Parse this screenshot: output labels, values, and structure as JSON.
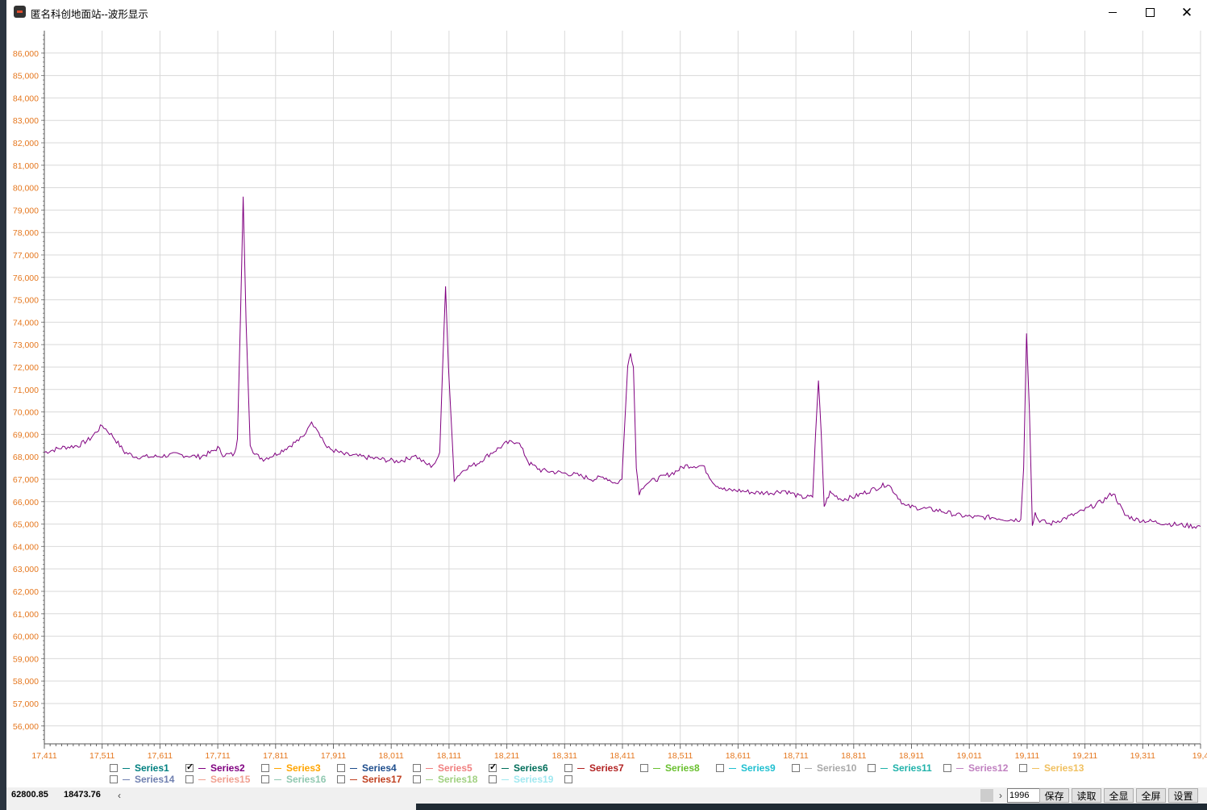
{
  "window": {
    "title": "匿名科创地面站--波形显示",
    "min_label": "—",
    "close_label": "✕"
  },
  "colors": {
    "tick_label": "#e5771e",
    "waveform": "#800080",
    "grid": "#d9d9d9"
  },
  "chart_data": {
    "type": "line",
    "title": "",
    "xlabel": "",
    "ylabel": "",
    "xlim": [
      17411,
      19411
    ],
    "ylim": [
      55200,
      87000
    ],
    "x_ticks": [
      "17,411",
      "17,511",
      "17,611",
      "17,711",
      "17,811",
      "17,911",
      "18,011",
      "18,111",
      "18,211",
      "18,311",
      "18,411",
      "18,511",
      "18,611",
      "18,711",
      "18,811",
      "18,911",
      "19,011",
      "19,111",
      "19,211",
      "19,311",
      "19,4"
    ],
    "y_ticks": [
      "86,000",
      "85,000",
      "84,000",
      "83,000",
      "82,000",
      "81,000",
      "80,000",
      "79,000",
      "78,000",
      "77,000",
      "76,000",
      "75,000",
      "74,000",
      "73,000",
      "72,000",
      "71,000",
      "70,000",
      "69,000",
      "68,000",
      "67,000",
      "66,000",
      "65,000",
      "64,000",
      "63,000",
      "62,000",
      "61,000",
      "60,000",
      "59,000",
      "58,000",
      "57,000",
      "56,000"
    ],
    "grid": true,
    "series": [
      {
        "name": "Series2",
        "color": "#800080",
        "x": [
          17411,
          17440,
          17470,
          17490,
          17511,
          17530,
          17550,
          17570,
          17600,
          17640,
          17680,
          17700,
          17711,
          17720,
          17740,
          17745,
          17750,
          17755,
          17760,
          17767,
          17775,
          17790,
          17810,
          17830,
          17860,
          17870,
          17880,
          17900,
          17930,
          17960,
          17990,
          18020,
          18040,
          18050,
          18060,
          18070,
          18080,
          18090,
          18095,
          18100,
          18105,
          18110,
          18120,
          18140,
          18160,
          18180,
          18210,
          18230,
          18250,
          18270,
          18300,
          18330,
          18360,
          18380,
          18400,
          18410,
          18420,
          18425,
          18430,
          18435,
          18440,
          18450,
          18460,
          18480,
          18500,
          18520,
          18550,
          18570,
          18590,
          18610,
          18640,
          18670,
          18690,
          18720,
          18740,
          18745,
          18750,
          18755,
          18760,
          18765,
          18770,
          18790,
          18810,
          18830,
          18850,
          18870,
          18900,
          18930,
          18960,
          18990,
          19020,
          19050,
          19080,
          19100,
          19105,
          19110,
          19115,
          19120,
          19125,
          19130,
          19150,
          19170,
          19200,
          19240,
          19260,
          19280,
          19300,
          19330,
          19360,
          19400,
          19411
        ],
        "values": [
          68200,
          68400,
          68500,
          68800,
          69400,
          68900,
          68200,
          68000,
          68000,
          68100,
          68000,
          68200,
          68400,
          68100,
          68100,
          68800,
          74000,
          79600,
          74000,
          68600,
          68100,
          67900,
          68100,
          68400,
          68900,
          69500,
          69400,
          68400,
          68100,
          68000,
          67900,
          67800,
          67900,
          68100,
          67900,
          67700,
          67600,
          67800,
          68200,
          72000,
          75600,
          72000,
          67000,
          67500,
          67700,
          68100,
          68600,
          68700,
          67700,
          67400,
          67300,
          67200,
          67000,
          67100,
          66800,
          67000,
          72000,
          72700,
          72000,
          67500,
          66400,
          66800,
          66900,
          67100,
          67300,
          67600,
          67600,
          66800,
          66500,
          66500,
          66400,
          66400,
          66500,
          66200,
          66200,
          69000,
          71400,
          69000,
          65800,
          66100,
          66400,
          66100,
          66200,
          66400,
          66600,
          66800,
          65800,
          65700,
          65600,
          65400,
          65300,
          65300,
          65200,
          65200,
          67500,
          73500,
          70000,
          65000,
          65500,
          65200,
          65000,
          65200,
          65500,
          66000,
          66400,
          65400,
          65200,
          65100,
          65000,
          64900,
          64900
        ]
      }
    ],
    "legend": [
      {
        "name": "Series1",
        "color": "#008080",
        "checked": false
      },
      {
        "name": "Series2",
        "color": "#800080",
        "checked": true
      },
      {
        "name": "Series3",
        "color": "#ffa500",
        "checked": false
      },
      {
        "name": "Series4",
        "color": "#1e4d8c",
        "checked": false
      },
      {
        "name": "Series5",
        "color": "#f08080",
        "checked": false
      },
      {
        "name": "Series6",
        "color": "#006e5a",
        "checked": true
      },
      {
        "name": "Series7",
        "color": "#b22222",
        "checked": false
      },
      {
        "name": "Series8",
        "color": "#6ac030",
        "checked": false
      },
      {
        "name": "Series9",
        "color": "#20c0d0",
        "checked": false
      },
      {
        "name": "Series10",
        "color": "#a9a9a9",
        "checked": false
      },
      {
        "name": "Series11",
        "color": "#20b2aa",
        "checked": false
      },
      {
        "name": "Series12",
        "color": "#c080c0",
        "checked": false
      },
      {
        "name": "Series13",
        "color": "#f0c060",
        "checked": false
      },
      {
        "name": "Series14",
        "color": "#7080b0",
        "checked": false
      },
      {
        "name": "Series15",
        "color": "#f0a090",
        "checked": false
      },
      {
        "name": "Series16",
        "color": "#90c8b0",
        "checked": false
      },
      {
        "name": "Series17",
        "color": "#c04020",
        "checked": false
      },
      {
        "name": "Series18",
        "color": "#a0d080",
        "checked": false
      },
      {
        "name": "Series19",
        "color": "#a0e8f0",
        "checked": false
      }
    ]
  },
  "status": {
    "coord_y": "62800.85",
    "coord_x": "18473.76",
    "scroll_left": "‹",
    "scroll_right": "›",
    "count_value": "1996",
    "save_label": "保存",
    "read_label": "读取",
    "show_all_label": "全显",
    "fullscreen_label": "全屏",
    "settings_label": "设置"
  }
}
